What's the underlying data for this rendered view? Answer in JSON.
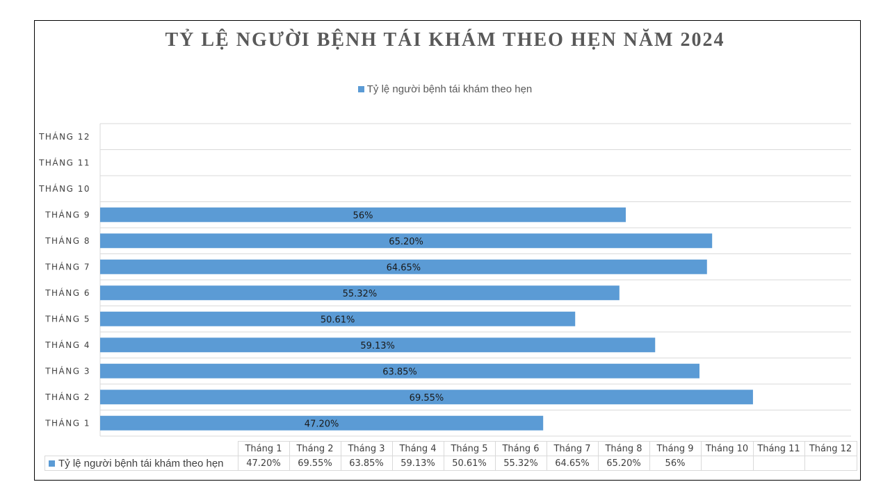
{
  "chart_data": {
    "type": "bar",
    "orientation": "horizontal",
    "title": "TỶ LỆ NGƯỜI BỆNH TÁI KHÁM THEO HẸN NĂM 2024",
    "categories": [
      "THÁNG 1",
      "THÁNG 2",
      "THÁNG 3",
      "THÁNG 4",
      "THÁNG 5",
      "THÁNG 6",
      "THÁNG 7",
      "THÁNG 8",
      "THÁNG 9",
      "THÁNG 10",
      "THÁNG 11",
      "THÁNG 12"
    ],
    "series": [
      {
        "name": "Tỷ lệ người bệnh tái khám theo hẹn",
        "values": [
          47.2,
          69.55,
          63.85,
          59.13,
          50.61,
          55.32,
          64.65,
          65.2,
          56,
          null,
          null,
          null
        ],
        "labels": [
          "47.20%",
          "69.55%",
          "63.85%",
          "59.13%",
          "50.61%",
          "55.32%",
          "64.65%",
          "65.20%",
          "56%",
          "",
          "",
          ""
        ],
        "color": "#5b9bd5"
      }
    ],
    "xlim": [
      0,
      80
    ],
    "grid": true,
    "legend_position": "top",
    "data_table": {
      "headers": [
        "Tháng 1",
        "Tháng 2",
        "Tháng 3",
        "Tháng 4",
        "Tháng 5",
        "Tháng 6",
        "Tháng 7",
        "Tháng 8",
        "Tháng 9",
        "Tháng 10",
        "Tháng 11",
        "Tháng 12"
      ],
      "series_label": "Tỷ lệ người bệnh tái khám theo hẹn",
      "values": [
        "47.20%",
        "69.55%",
        "63.85%",
        "59.13%",
        "50.61%",
        "55.32%",
        "64.65%",
        "65.20%",
        "56%",
        "",
        "",
        ""
      ]
    }
  }
}
